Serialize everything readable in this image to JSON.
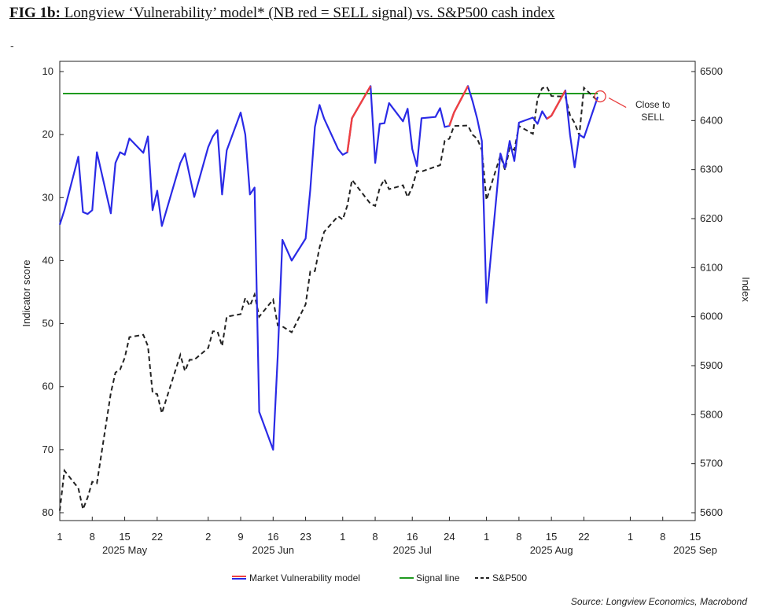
{
  "header": {
    "title_bold": "FIG 1b:",
    "title_rest": " Longview ‘Vulnerability’ model* (NB red = SELL signal) vs. S&P500 cash index",
    "dash": "-"
  },
  "chart_data": {
    "type": "line",
    "title": "FIG 1b: Longview ‘Vulnerability’ model* (NB red = SELL signal) vs. S&P500 cash index",
    "ylabel_left": "Indicator score",
    "ylabel_right": "Index",
    "left_axis": {
      "min": 10,
      "max": 80,
      "inverted": true,
      "ticks": [
        "10",
        "20",
        "30",
        "40",
        "50",
        "60",
        "70",
        "80"
      ]
    },
    "right_axis": {
      "min": 5600,
      "max": 6500,
      "ticks": [
        "5600",
        "5700",
        "5800",
        "5900",
        "6000",
        "6100",
        "6200",
        "6300",
        "6400",
        "6500"
      ]
    },
    "x_range": {
      "start": "2025-05-01",
      "end": "2025-09-15"
    },
    "x_ticks": [
      {
        "date": "2025-05-01",
        "label": "1"
      },
      {
        "date": "2025-05-08",
        "label": "8"
      },
      {
        "date": "2025-05-15",
        "label": "15"
      },
      {
        "date": "2025-05-22",
        "label": "22"
      },
      {
        "date": "2025-06-02",
        "label": "2"
      },
      {
        "date": "2025-06-09",
        "label": "9"
      },
      {
        "date": "2025-06-16",
        "label": "16"
      },
      {
        "date": "2025-06-23",
        "label": "23"
      },
      {
        "date": "2025-07-01",
        "label": "1"
      },
      {
        "date": "2025-07-08",
        "label": "8"
      },
      {
        "date": "2025-07-16",
        "label": "16"
      },
      {
        "date": "2025-07-24",
        "label": "24"
      },
      {
        "date": "2025-08-01",
        "label": "1"
      },
      {
        "date": "2025-08-08",
        "label": "8"
      },
      {
        "date": "2025-08-15",
        "label": "15"
      },
      {
        "date": "2025-08-22",
        "label": "22"
      },
      {
        "date": "2025-09-01",
        "label": "1"
      },
      {
        "date": "2025-09-08",
        "label": "8"
      },
      {
        "date": "2025-09-15",
        "label": "15"
      }
    ],
    "month_labels": [
      {
        "date": "2025-05-15",
        "label": "2025 May"
      },
      {
        "date": "2025-06-16",
        "label": "2025 Jun"
      },
      {
        "date": "2025-07-16",
        "label": "2025 Jul"
      },
      {
        "date": "2025-08-15",
        "label": "2025 Aug"
      },
      {
        "date": "2025-09-15",
        "label": "2025 Sep"
      }
    ],
    "series": [
      {
        "name": "Market Vulnerability model",
        "axis": "left",
        "color": "#2a2ae6",
        "signal_color": "#f04040",
        "x": [
          "2025-05-01",
          "2025-05-02",
          "2025-05-05",
          "2025-05-06",
          "2025-05-07",
          "2025-05-08",
          "2025-05-09",
          "2025-05-12",
          "2025-05-13",
          "2025-05-14",
          "2025-05-15",
          "2025-05-16",
          "2025-05-19",
          "2025-05-20",
          "2025-05-21",
          "2025-05-22",
          "2025-05-23",
          "2025-05-27",
          "2025-05-28",
          "2025-05-29",
          "2025-05-30",
          "2025-06-02",
          "2025-06-03",
          "2025-06-04",
          "2025-06-05",
          "2025-06-06",
          "2025-06-09",
          "2025-06-10",
          "2025-06-11",
          "2025-06-12",
          "2025-06-13",
          "2025-06-16",
          "2025-06-17",
          "2025-06-18",
          "2025-06-20",
          "2025-06-23",
          "2025-06-24",
          "2025-06-25",
          "2025-06-26",
          "2025-06-27",
          "2025-06-30",
          "2025-07-01",
          "2025-07-02",
          "2025-07-03",
          "2025-07-07",
          "2025-07-08",
          "2025-07-09",
          "2025-07-10",
          "2025-07-11",
          "2025-07-14",
          "2025-07-15",
          "2025-07-16",
          "2025-07-17",
          "2025-07-18",
          "2025-07-21",
          "2025-07-22",
          "2025-07-23",
          "2025-07-24",
          "2025-07-25",
          "2025-07-28",
          "2025-07-29",
          "2025-07-30",
          "2025-07-31",
          "2025-08-01",
          "2025-08-04",
          "2025-08-05",
          "2025-08-06",
          "2025-08-07",
          "2025-08-08",
          "2025-08-11",
          "2025-08-12",
          "2025-08-13",
          "2025-08-14",
          "2025-08-15",
          "2025-08-18",
          "2025-08-19",
          "2025-08-20",
          "2025-08-21",
          "2025-08-22",
          "2025-08-25"
        ],
        "values": [
          34.3,
          32.0,
          23.5,
          32.3,
          32.6,
          32.0,
          22.8,
          32.5,
          24.5,
          22.8,
          23.2,
          20.6,
          22.9,
          20.3,
          32.0,
          28.9,
          34.5,
          24.5,
          23.0,
          26.5,
          29.9,
          22.0,
          20.3,
          19.3,
          29.5,
          22.5,
          16.5,
          20.0,
          29.5,
          28.4,
          64.0,
          70.0,
          55.0,
          36.7,
          40.0,
          36.5,
          28.8,
          18.8,
          15.3,
          17.5,
          22.3,
          23.2,
          22.8,
          17.4,
          12.3,
          24.5,
          18.3,
          18.2,
          15.0,
          17.9,
          15.9,
          22.3,
          25.0,
          17.4,
          17.2,
          15.8,
          18.8,
          18.6,
          16.5,
          12.3,
          14.7,
          17.5,
          21.0,
          46.7,
          23.0,
          25.3,
          21.0,
          24.2,
          18.1,
          17.3,
          18.3,
          16.3,
          17.5,
          17.0,
          13.0,
          20.0,
          25.2,
          20.0,
          20.5,
          14.0
        ],
        "signal": [
          false,
          false,
          false,
          false,
          false,
          false,
          false,
          false,
          false,
          false,
          false,
          false,
          false,
          false,
          false,
          false,
          false,
          false,
          false,
          false,
          false,
          false,
          false,
          false,
          false,
          false,
          false,
          false,
          false,
          false,
          false,
          false,
          false,
          false,
          false,
          false,
          false,
          false,
          false,
          false,
          false,
          false,
          false,
          true,
          true,
          false,
          false,
          false,
          false,
          false,
          false,
          false,
          false,
          false,
          false,
          false,
          false,
          false,
          true,
          true,
          false,
          false,
          false,
          false,
          false,
          false,
          false,
          false,
          false,
          false,
          false,
          false,
          false,
          true,
          true,
          false,
          false,
          false,
          false,
          false
        ]
      },
      {
        "name": "Signal line",
        "axis": "left",
        "color": "#1f9a1f",
        "constant": 13.5
      },
      {
        "name": "S&P500",
        "axis": "right",
        "color": "#222222",
        "dashed": true,
        "x": [
          "2025-05-01",
          "2025-05-02",
          "2025-05-05",
          "2025-05-06",
          "2025-05-07",
          "2025-05-08",
          "2025-05-09",
          "2025-05-12",
          "2025-05-13",
          "2025-05-14",
          "2025-05-15",
          "2025-05-16",
          "2025-05-19",
          "2025-05-20",
          "2025-05-21",
          "2025-05-22",
          "2025-05-23",
          "2025-05-27",
          "2025-05-28",
          "2025-05-29",
          "2025-05-30",
          "2025-06-02",
          "2025-06-03",
          "2025-06-04",
          "2025-06-05",
          "2025-06-06",
          "2025-06-09",
          "2025-06-10",
          "2025-06-11",
          "2025-06-12",
          "2025-06-13",
          "2025-06-16",
          "2025-06-17",
          "2025-06-18",
          "2025-06-20",
          "2025-06-23",
          "2025-06-24",
          "2025-06-25",
          "2025-06-26",
          "2025-06-27",
          "2025-06-30",
          "2025-07-01",
          "2025-07-02",
          "2025-07-03",
          "2025-07-07",
          "2025-07-08",
          "2025-07-09",
          "2025-07-10",
          "2025-07-11",
          "2025-07-14",
          "2025-07-15",
          "2025-07-16",
          "2025-07-17",
          "2025-07-18",
          "2025-07-21",
          "2025-07-22",
          "2025-07-23",
          "2025-07-24",
          "2025-07-25",
          "2025-07-28",
          "2025-07-29",
          "2025-07-30",
          "2025-07-31",
          "2025-08-01",
          "2025-08-04",
          "2025-08-05",
          "2025-08-06",
          "2025-08-07",
          "2025-08-08",
          "2025-08-11",
          "2025-08-12",
          "2025-08-13",
          "2025-08-14",
          "2025-08-15",
          "2025-08-18",
          "2025-08-19",
          "2025-08-20",
          "2025-08-21",
          "2025-08-22",
          "2025-08-25"
        ],
        "values": [
          5604,
          5686,
          5650,
          5607,
          5631,
          5663,
          5660,
          5844,
          5886,
          5892,
          5916,
          5958,
          5963,
          5940,
          5845,
          5842,
          5803,
          5922,
          5889,
          5912,
          5912,
          5936,
          5970,
          5970,
          5940,
          6000,
          6005,
          6038,
          6022,
          6045,
          6000,
          6035,
          5982,
          5980,
          5968,
          6025,
          6092,
          6093,
          6141,
          6173,
          6205,
          6198,
          6227,
          6279,
          6230,
          6226,
          6263,
          6280,
          6260,
          6268,
          6244,
          6264,
          6297,
          6296,
          6306,
          6309,
          6359,
          6363,
          6389,
          6390,
          6371,
          6363,
          6340,
          6238,
          6329,
          6299,
          6345,
          6340,
          6389,
          6373,
          6445,
          6466,
          6469,
          6450,
          6449,
          6411,
          6395,
          6370,
          6467,
          6440
        ]
      }
    ],
    "annotation": {
      "text_line1": "Close to",
      "text_line2": "SELL",
      "at_date": "2025-08-25",
      "at_value": 14.0,
      "color": "#e84040"
    },
    "legend": {
      "placement": "bottom",
      "items": [
        "Market Vulnerability model",
        "Signal line",
        "S&P500"
      ]
    },
    "source": "Source: Longview Economics, Macrobond"
  }
}
